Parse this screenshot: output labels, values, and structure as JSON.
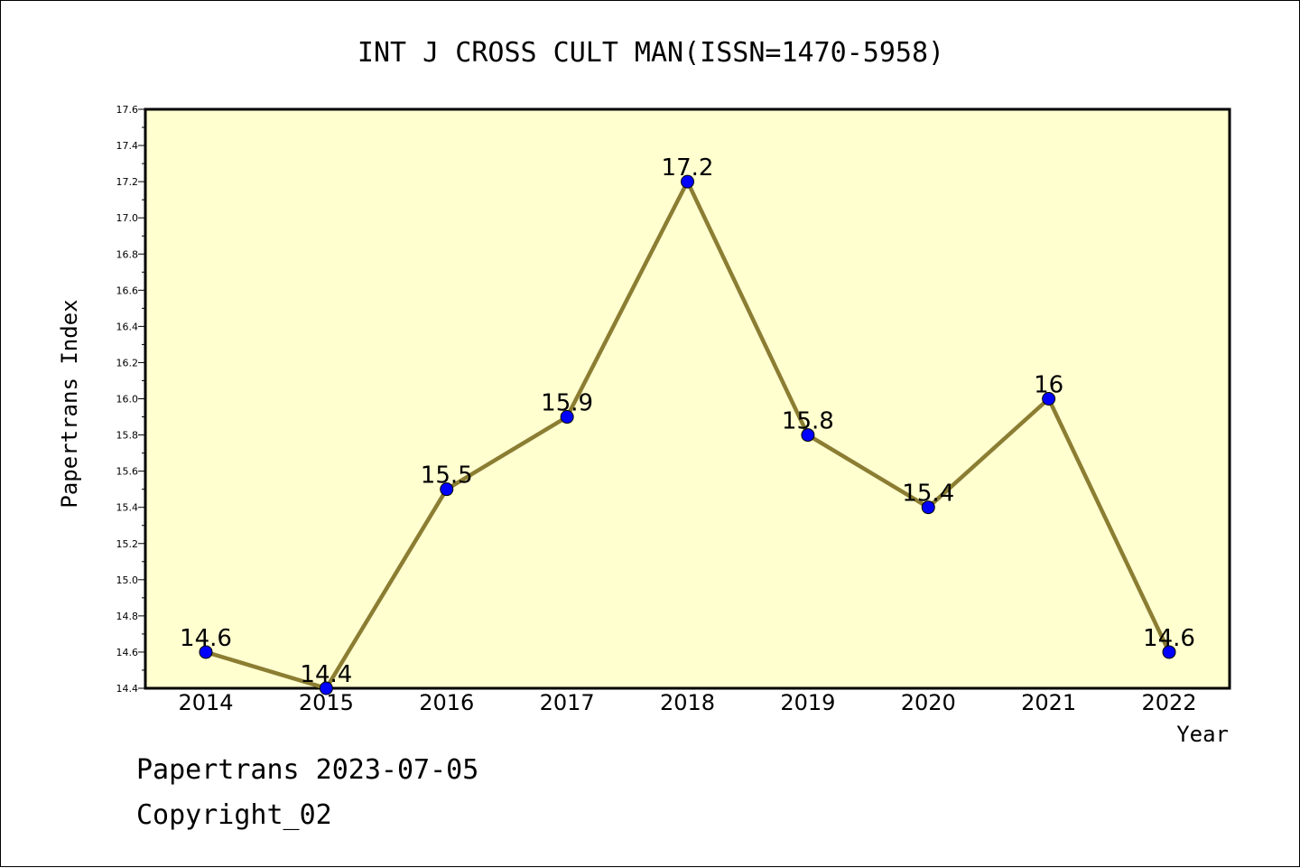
{
  "footer": {
    "line1": "Papertrans 2023-07-05",
    "line2": "Copyright_02"
  },
  "colors": {
    "plot_background": "#ffffd0",
    "line": "#8b7d32",
    "marker": "#0000ff",
    "axis": "#000000"
  },
  "chart_data": {
    "type": "line",
    "title": "INT J CROSS CULT MAN(ISSN=1470-5958)",
    "xlabel": "Year",
    "ylabel": "Papertrans Index",
    "x": [
      "2014",
      "2015",
      "2016",
      "2017",
      "2018",
      "2019",
      "2020",
      "2021",
      "2022"
    ],
    "series": [
      {
        "values": [
          14.6,
          14.4,
          15.5,
          15.9,
          17.2,
          15.8,
          15.4,
          16.0,
          14.6
        ],
        "data_labels": [
          "14.6",
          "14.4",
          "15.5",
          "15.9",
          "17.2",
          "15.8",
          "15.4",
          "16",
          "14.6"
        ]
      }
    ],
    "ylim": [
      14.4,
      17.6
    ],
    "yticks": [
      "14.4",
      "14.6",
      "14.8",
      "15.0",
      "15.2",
      "15.4",
      "15.6",
      "15.8",
      "16.0",
      "16.2",
      "16.4",
      "16.6",
      "16.8",
      "17.0",
      "17.2",
      "17.4",
      "17.6"
    ],
    "grid": false,
    "legend": "none"
  }
}
